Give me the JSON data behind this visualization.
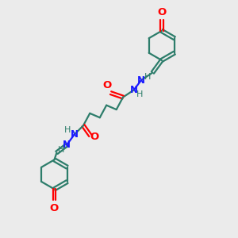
{
  "bg_color": "#ebebeb",
  "bond_color": "#2d7d6b",
  "N_color": "#1a1aff",
  "O_color": "#ff0000",
  "line_width": 1.6,
  "font_size": 8.5,
  "fig_size": [
    3.0,
    3.0
  ],
  "dpi": 100,
  "xlim": [
    0,
    10
  ],
  "ylim": [
    0,
    10
  ]
}
